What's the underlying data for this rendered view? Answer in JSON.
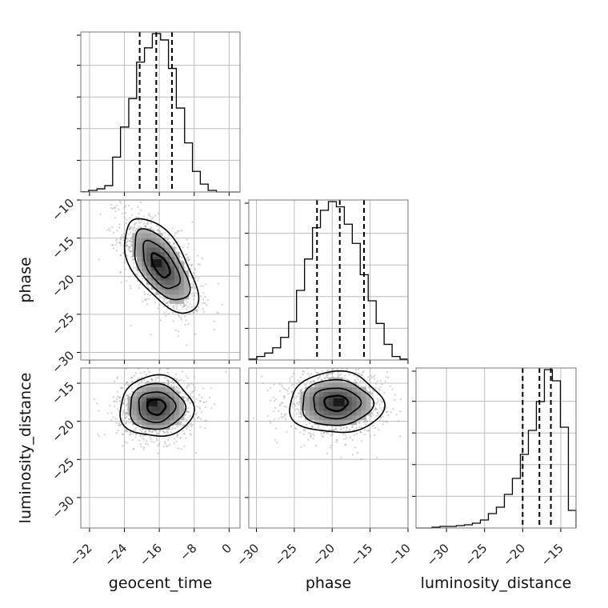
{
  "chart_data": {
    "type": "corner",
    "grid": true,
    "parameters": [
      {
        "name": "geocent_time",
        "range": [
          -34,
          2.5
        ],
        "ticks": [
          -32,
          -24,
          -16,
          -8,
          0
        ],
        "tick_labels": [
          "−32",
          "−24",
          "−16",
          "−8",
          "0"
        ]
      },
      {
        "name": "phase",
        "range": [
          -31,
          -10
        ],
        "ticks": [
          -30,
          -25,
          -20,
          -15,
          -10
        ],
        "tick_labels": [
          "−30",
          "−25",
          "−20",
          "−15",
          "−10"
        ]
      },
      {
        "name": "luminosity_distance",
        "range": [
          -34,
          -13
        ],
        "ticks": [
          -30,
          -25,
          -20,
          -15
        ],
        "tick_labels": [
          "−30",
          "−25",
          "−20",
          "−15"
        ]
      }
    ],
    "histograms": [
      {
        "param": "geocent_time",
        "bin_edges": [
          -34,
          -32.2,
          -30.3,
          -28.5,
          -26.7,
          -24.9,
          -23,
          -21.2,
          -19.4,
          -17.6,
          -15.7,
          -13.9,
          -12.1,
          -10.2,
          -8.4,
          -6.6,
          -4.8,
          -2.9,
          -1.1,
          0.7,
          2.5
        ],
        "counts": [
          0.1,
          1,
          2,
          4,
          22,
          41,
          59,
          82,
          91,
          100,
          96,
          78,
          53,
          31,
          13,
          5,
          1,
          0,
          0,
          0
        ],
        "quantiles": [
          -20.5,
          -16.7,
          -13.1
        ]
      },
      {
        "param": "phase",
        "bin_edges": [
          -31,
          -29.95,
          -28.9,
          -27.85,
          -26.8,
          -25.75,
          -24.7,
          -23.65,
          -22.6,
          -21.55,
          -20.5,
          -19.45,
          -18.4,
          -17.35,
          -16.3,
          -15.25,
          -14.2,
          -13.15,
          -12.1,
          -11.05,
          -10
        ],
        "counts": [
          0.5,
          2,
          4,
          7,
          13,
          22,
          40,
          58,
          76,
          86,
          91,
          88,
          78,
          67,
          49,
          34,
          21,
          9,
          2,
          0.5
        ],
        "quantiles": [
          -22,
          -19,
          -15.8
        ]
      },
      {
        "param": "luminosity_distance",
        "bin_edges": [
          -34,
          -32.95,
          -31.9,
          -30.85,
          -29.75,
          -28.7,
          -27.65,
          -26.6,
          -25.55,
          -24.5,
          -23.45,
          -22.4,
          -21.35,
          -20.3,
          -19.25,
          -18.2,
          -17.15,
          -16.1,
          -15.05,
          -14,
          -13
        ],
        "counts": [
          0,
          0,
          0.5,
          1,
          1,
          1.5,
          2,
          3,
          5,
          9,
          13,
          21,
          31,
          46,
          61,
          79,
          99,
          92,
          63,
          11
        ],
        "quantiles": [
          -20,
          -17.8,
          -16.3
        ]
      }
    ],
    "pair_panels": [
      {
        "x": "geocent_time",
        "y": "phase",
        "center": [
          -15.7,
          -18.6
        ],
        "sigma": [
          4.2,
          3.1
        ],
        "correlation": -0.6,
        "peak": [
          -16.5,
          -18.3
        ]
      },
      {
        "x": "geocent_time",
        "y": "luminosity_distance",
        "center": [
          -16.7,
          -18.1
        ],
        "sigma": [
          4.2,
          2.0
        ],
        "correlation": 0.0,
        "peak": [
          -17.5,
          -17.5
        ]
      },
      {
        "x": "phase",
        "y": "luminosity_distance",
        "center": [
          -19.5,
          -17.6
        ],
        "sigma": [
          3.1,
          2.0
        ],
        "correlation": 0.0,
        "peak": [
          -19,
          -17.5
        ]
      }
    ]
  }
}
